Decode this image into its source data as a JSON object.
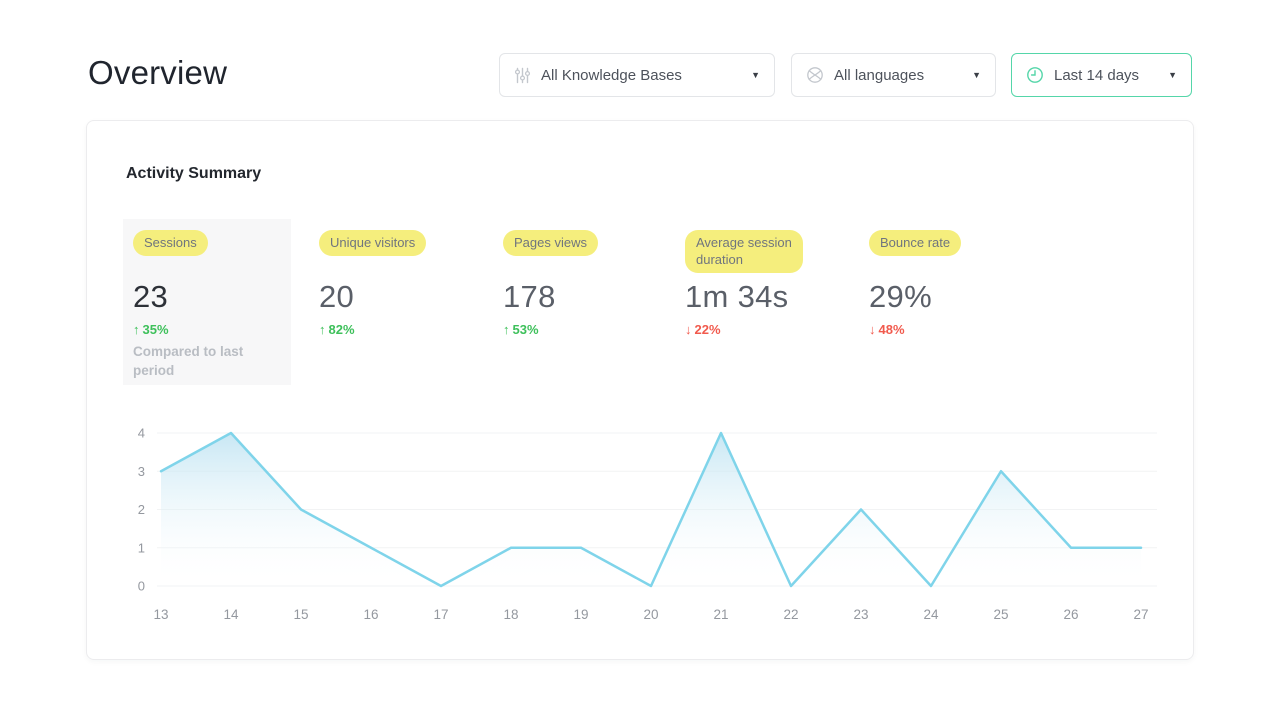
{
  "page": {
    "title": "Overview"
  },
  "filters": {
    "knowledge_bases": {
      "label": "All Knowledge Bases",
      "icon": "sliders-icon"
    },
    "languages": {
      "label": "All languages",
      "icon": "globe-icon"
    },
    "date_range": {
      "label": "Last 14 days",
      "icon": "clock-icon",
      "accent_color": "#55d6a9"
    },
    "caret": "▼"
  },
  "card": {
    "title": "Activity Summary",
    "metrics": [
      {
        "label": "Sessions",
        "value": "23",
        "arrow": "↑",
        "delta": "35%",
        "direction": "up",
        "note": "Compared to last period",
        "highlighted_panel": true
      },
      {
        "label": "Unique visitors",
        "value": "20",
        "arrow": "↑",
        "delta": "82%",
        "direction": "up"
      },
      {
        "label": "Pages views",
        "value": "178",
        "arrow": "↑",
        "delta": "53%",
        "direction": "up"
      },
      {
        "label": "Average session duration",
        "value": "1m 34s",
        "arrow": "↓",
        "delta": "22%",
        "direction": "down"
      },
      {
        "label": "Bounce rate",
        "value": "29%",
        "arrow": "↓",
        "delta": "48%",
        "direction": "down"
      }
    ]
  },
  "chart_data": {
    "type": "area",
    "title": "",
    "xlabel": "",
    "ylabel": "",
    "x": [
      13,
      14,
      15,
      16,
      17,
      18,
      19,
      20,
      21,
      22,
      23,
      24,
      25,
      26,
      27
    ],
    "values": [
      3,
      4,
      2,
      1,
      0,
      1,
      1,
      0,
      4,
      0,
      2,
      0,
      3,
      1,
      1
    ],
    "ylim": [
      0,
      4
    ],
    "yticks": [
      0,
      1,
      2,
      3,
      4
    ],
    "grid": true,
    "legend": "none",
    "line_color": "#7fd4ea",
    "fill_top_color": "#b5dff0",
    "grid_color": "#f2f3f4",
    "tick_color": "#94989f"
  },
  "colors": {
    "pill_yellow": "#f5ee7d",
    "up_green": "#3ec05b",
    "down_red": "#f15a4d",
    "date_accent": "#55d6a9",
    "panel_gray": "#f7f7f8"
  }
}
